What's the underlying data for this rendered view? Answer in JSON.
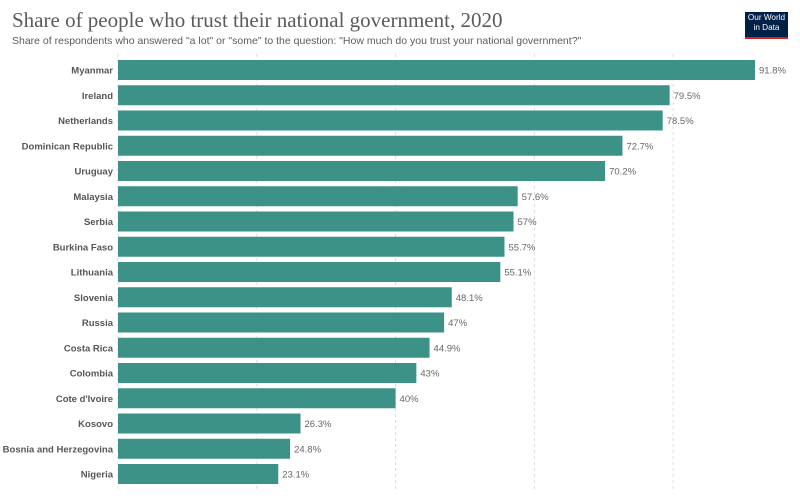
{
  "header": {
    "title": "Share of people who trust their national government, 2020",
    "subtitle": "Share of respondents who answered \"a lot\" or \"some\" to the question: \"How much do you trust your national government?\"",
    "logo_line1": "Our World",
    "logo_line2": "in Data"
  },
  "colors": {
    "bar": "#3c9287",
    "logo_bg": "#002147",
    "logo_accent": "#ce261e"
  },
  "chart_data": {
    "type": "bar",
    "orientation": "horizontal",
    "title": "Share of people who trust their national government, 2020",
    "subtitle": "Share of respondents who answered \"a lot\" or \"some\" to the question: \"How much do you trust your national government?\"",
    "categories": [
      "Myanmar",
      "Ireland",
      "Netherlands",
      "Dominican Republic",
      "Uruguay",
      "Malaysia",
      "Serbia",
      "Burkina Faso",
      "Lithuania",
      "Slovenia",
      "Russia",
      "Costa Rica",
      "Colombia",
      "Cote d'Ivoire",
      "Kosovo",
      "Bosnia and Herzegovina",
      "Nigeria"
    ],
    "values": [
      91.8,
      79.5,
      78.5,
      72.7,
      70.2,
      57.6,
      57,
      55.7,
      55.1,
      48.1,
      47,
      44.9,
      43,
      40,
      26.3,
      24.8,
      23.1
    ],
    "value_labels": [
      "91.8%",
      "79.5%",
      "78.5%",
      "72.7%",
      "70.2%",
      "57.6%",
      "57%",
      "55.7%",
      "55.1%",
      "48.1%",
      "47%",
      "44.9%",
      "43%",
      "40%",
      "26.3%",
      "24.8%",
      "23.1%"
    ],
    "xlim": [
      0,
      100
    ],
    "gridlines": [
      0,
      20,
      40,
      60,
      80
    ],
    "grid": true
  }
}
